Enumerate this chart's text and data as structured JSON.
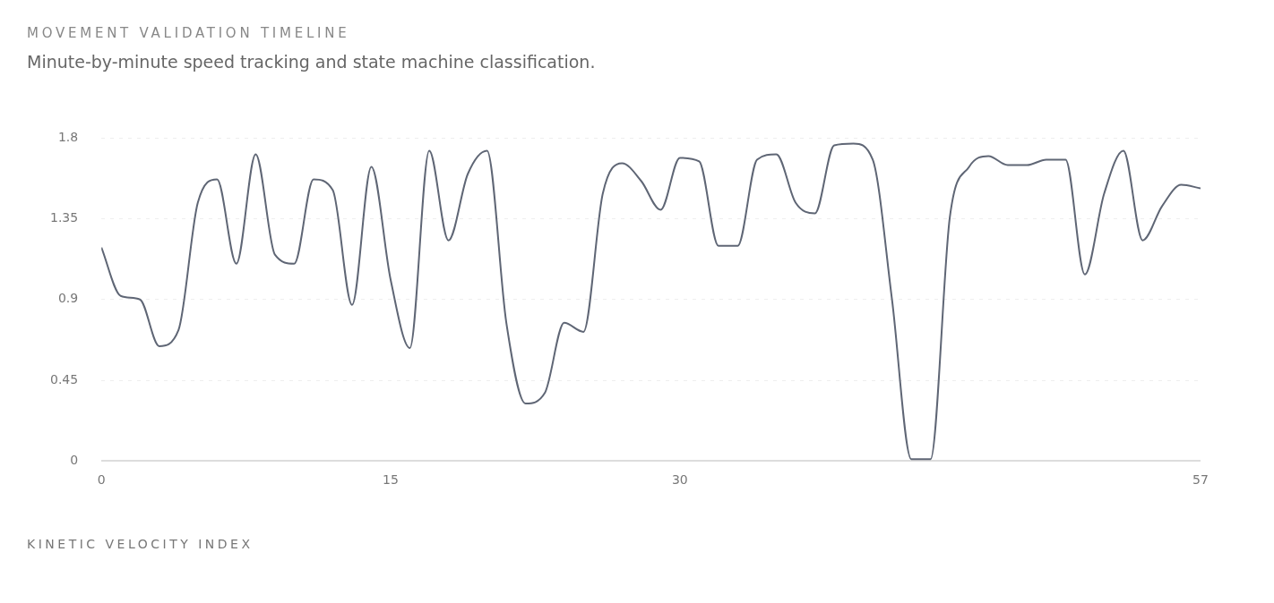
{
  "chart_data": {
    "type": "line",
    "title": "MOVEMENT VALIDATION TIMELINE",
    "subtitle": "Minute-by-minute speed tracking and state machine classification.",
    "xlabel": "KINETIC VELOCITY INDEX",
    "x": [
      0,
      1,
      2,
      3,
      4,
      5,
      6,
      7,
      8,
      9,
      10,
      11,
      12,
      13,
      14,
      15,
      16,
      17,
      18,
      19,
      20,
      21,
      22,
      23,
      24,
      25,
      26,
      27,
      28,
      29,
      30,
      31,
      32,
      33,
      34,
      35,
      36,
      37,
      38,
      39,
      40,
      41,
      42,
      43,
      44,
      45,
      46,
      47,
      48,
      49,
      50,
      51,
      52,
      53,
      54,
      55,
      56,
      57
    ],
    "series": [
      {
        "color": "#5f6675",
        "values": [
          1.19,
          0.92,
          0.9,
          0.64,
          0.73,
          1.44,
          1.57,
          1.1,
          1.71,
          1.15,
          1.1,
          1.57,
          1.51,
          0.87,
          1.64,
          1.01,
          0.63,
          1.73,
          1.23,
          1.6,
          1.73,
          0.77,
          0.32,
          0.38,
          0.77,
          0.72,
          1.49,
          1.66,
          1.56,
          1.4,
          1.69,
          1.67,
          1.2,
          1.2,
          1.68,
          1.71,
          1.44,
          1.38,
          1.76,
          1.77,
          1.68,
          0.9,
          0.01,
          0.01,
          1.36,
          1.64,
          1.7,
          1.65,
          1.65,
          1.68,
          1.68,
          1.04,
          1.49,
          1.73,
          1.23,
          1.42,
          1.54,
          1.52
        ]
      }
    ],
    "xlim": [
      0,
      57
    ],
    "xticks": [
      0,
      15,
      30,
      57
    ],
    "ylim": [
      0,
      1.8
    ],
    "yticks": [
      0,
      0.45,
      0.9,
      1.35,
      1.8
    ],
    "grid": "y",
    "legend": false,
    "marker": "none",
    "line_style": "solid"
  }
}
